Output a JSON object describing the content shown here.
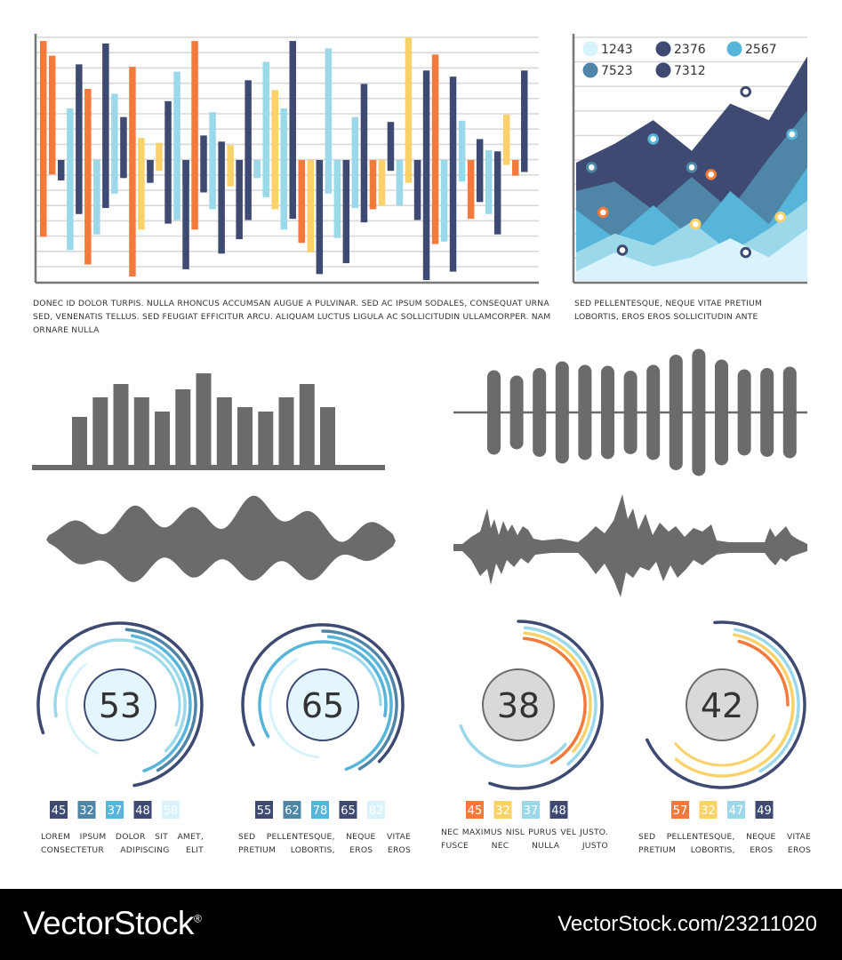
{
  "colors": {
    "navy": "#3f4a73",
    "orange": "#f47a3c",
    "lightblue": "#9bd8ea",
    "yellow": "#fbd26a",
    "blue": "#56b5d8",
    "midblue": "#4f86a8",
    "paleblue": "#d8f3fb",
    "grey": "#6b6b6b",
    "lightgrey": "#d9d9d9"
  },
  "captions": {
    "bars_main": "DONEC ID DOLOR TURPIS. NULLA RHONCUS ACCUMSAN AUGUE A PULVINAR. SED AC IPSUM SODALES, CONSEQUAT URNA SED, VENENATIS TELLUS. SED FEUGIAT EFFICITUR ARCU. ALIQUAM LUCTUS LIGULA AC SOLLICITUDIN ULLAMCORPER. NAM ORNARE NULLA",
    "area_main": "SED PELLENTESQUE, NEQUE VITAE PRETIUM LOBORTIS, EROS EROS SOLLICITUDIN ANTE",
    "gauge1": "LOREM IPSUM DOLOR SIT AMET, CONSECTETUR ADIPISCING ELIT",
    "gauge2": "SED PELLENTESQUE, NEQUE VITAE PRETIUM LOBORTIS, EROS EROS",
    "gauge3": "NEC MAXIMUS NISL PURUS VEL JUSTO. FUSCE NEC NULLA JUSTO",
    "gauge4": "SED PELLENTESQUE, NEQUE VITAE PRETIUM LOBORTIS, EROS EROS"
  },
  "footer": {
    "brand": "VectorStock",
    "registered": "®",
    "url": "VectorStock.com/23211020"
  },
  "chart_data": [
    {
      "id": "diverging-bars",
      "type": "bar",
      "title": "",
      "ylim": [
        -100,
        100
      ],
      "grid": true,
      "legend": "none",
      "series": [
        {
          "color": "orange",
          "values": [
            97,
            -64
          ]
        },
        {
          "color": "orange",
          "values": [
            85,
            -12
          ]
        },
        {
          "color": "navy",
          "values": [
            0,
            -17
          ]
        },
        {
          "color": "lightblue",
          "values": [
            42,
            -75
          ]
        },
        {
          "color": "navy",
          "values": [
            78,
            -45
          ]
        },
        {
          "color": "orange",
          "values": [
            58,
            -87
          ]
        },
        {
          "color": "lightblue",
          "values": [
            -10,
            -62
          ]
        },
        {
          "color": "navy",
          "values": [
            95,
            -40
          ]
        },
        {
          "color": "lightblue",
          "values": [
            54,
            -28
          ]
        },
        {
          "color": "navy",
          "values": [
            35,
            -15
          ]
        },
        {
          "color": "orange",
          "values": [
            76,
            -97
          ]
        },
        {
          "color": "yellow",
          "values": [
            18,
            -58
          ]
        },
        {
          "color": "navy",
          "values": [
            -8,
            -19
          ]
        },
        {
          "color": "yellow",
          "values": [
            14,
            -9
          ]
        },
        {
          "color": "navy",
          "values": [
            48,
            -53
          ]
        },
        {
          "color": "lightblue",
          "values": [
            72,
            -50
          ]
        },
        {
          "color": "navy",
          "values": [
            -20,
            -91
          ]
        },
        {
          "color": "orange",
          "values": [
            97,
            -58
          ]
        },
        {
          "color": "navy",
          "values": [
            20,
            -27
          ]
        },
        {
          "color": "lightblue",
          "values": [
            39,
            -41
          ]
        },
        {
          "color": "navy",
          "values": [
            15,
            -78
          ]
        },
        {
          "color": "yellow",
          "values": [
            12,
            -22
          ]
        },
        {
          "color": "navy",
          "values": [
            -12,
            -66
          ]
        },
        {
          "color": "navy",
          "values": [
            65,
            -50
          ]
        },
        {
          "color": "lightblue",
          "values": [
            -15,
            -15
          ]
        },
        {
          "color": "lightblue",
          "values": [
            80,
            -31
          ]
        },
        {
          "color": "yellow",
          "values": [
            57,
            -41
          ]
        },
        {
          "color": "lightblue",
          "values": [
            42,
            -58
          ]
        },
        {
          "color": "navy",
          "values": [
            97,
            -49
          ]
        },
        {
          "color": "orange",
          "values": [
            -5,
            -69
          ]
        },
        {
          "color": "yellow",
          "values": [
            -19,
            -77
          ]
        },
        {
          "color": "navy",
          "values": [
            -10,
            -95
          ]
        },
        {
          "color": "lightblue",
          "values": [
            91,
            -28
          ]
        },
        {
          "color": "lightblue",
          "values": [
            -8,
            -65
          ]
        },
        {
          "color": "navy",
          "values": [
            -12,
            -86
          ]
        },
        {
          "color": "lightblue",
          "values": [
            35,
            -40
          ]
        },
        {
          "color": "navy",
          "values": [
            62,
            -52
          ]
        },
        {
          "color": "orange",
          "values": [
            -5,
            -41
          ]
        },
        {
          "color": "yellow",
          "values": [
            -5,
            -38
          ]
        },
        {
          "color": "navy",
          "values": [
            31,
            -9
          ]
        },
        {
          "color": "lightblue",
          "values": [
            -5,
            -38
          ]
        },
        {
          "color": "yellow",
          "values": [
            100,
            -19
          ]
        },
        {
          "color": "navy",
          "values": [
            -50,
            -14
          ]
        },
        {
          "color": "navy",
          "values": [
            73,
            -100
          ]
        },
        {
          "color": "orange",
          "values": [
            86,
            -70
          ]
        },
        {
          "color": "lightblue",
          "values": [
            -5,
            -68
          ]
        },
        {
          "color": "navy",
          "values": [
            68,
            -93
          ]
        },
        {
          "color": "lightblue",
          "values": [
            32,
            -18
          ]
        },
        {
          "color": "orange",
          "values": [
            -5,
            -49
          ]
        },
        {
          "color": "navy",
          "values": [
            17,
            -35
          ]
        },
        {
          "color": "lightblue",
          "values": [
            8,
            -45
          ]
        },
        {
          "color": "navy",
          "values": [
            7,
            -62
          ]
        },
        {
          "color": "yellow",
          "values": [
            37,
            -4
          ]
        },
        {
          "color": "orange",
          "values": [
            -5,
            -13
          ]
        },
        {
          "color": "navy",
          "values": [
            73,
            -10
          ]
        }
      ]
    },
    {
      "id": "stacked-area",
      "type": "area",
      "title": "",
      "legend": "top-left",
      "legend_entries": [
        {
          "label": "1243",
          "color": "paleblue"
        },
        {
          "label": "2376",
          "color": "navy"
        },
        {
          "label": "2567",
          "color": "blue"
        },
        {
          "label": "7523",
          "color": "midblue"
        },
        {
          "label": "7312",
          "color": "navy"
        }
      ],
      "x": [
        0,
        1,
        2,
        3,
        4,
        5,
        6
      ],
      "series": [
        {
          "color": "navy",
          "values": [
            50,
            58,
            68,
            55,
            75,
            68,
            95
          ]
        },
        {
          "color": "midblue",
          "values": [
            38,
            42,
            30,
            44,
            30,
            52,
            72
          ]
        },
        {
          "color": "blue",
          "values": [
            30,
            18,
            32,
            18,
            38,
            24,
            48
          ]
        },
        {
          "color": "lightblue",
          "values": [
            12,
            20,
            15,
            25,
            12,
            22,
            34
          ]
        },
        {
          "color": "paleblue",
          "values": [
            4,
            12,
            6,
            10,
            18,
            10,
            22
          ]
        }
      ],
      "markers": [
        {
          "color": "midblue",
          "x": 0.4,
          "y": 48
        },
        {
          "color": "blue",
          "x": 2.0,
          "y": 60
        },
        {
          "color": "midblue",
          "x": 3.0,
          "y": 48
        },
        {
          "color": "orange",
          "x": 3.5,
          "y": 45
        },
        {
          "color": "navy",
          "x": 4.4,
          "y": 80
        },
        {
          "color": "blue",
          "x": 5.6,
          "y": 62
        },
        {
          "color": "orange",
          "x": 0.7,
          "y": 29
        },
        {
          "color": "yellow",
          "x": 3.1,
          "y": 24
        },
        {
          "color": "yellow",
          "x": 5.3,
          "y": 27
        },
        {
          "color": "navy",
          "x": 1.2,
          "y": 13
        },
        {
          "color": "navy",
          "x": 4.4,
          "y": 12
        }
      ]
    },
    {
      "id": "grey-bars",
      "type": "bar",
      "values": [
        55,
        77,
        92,
        77,
        61,
        86,
        104,
        77,
        66,
        61,
        77,
        92,
        66
      ]
    },
    {
      "id": "grey-centered-bars",
      "type": "bar",
      "values": [
        95,
        83,
        100,
        115,
        107,
        105,
        94,
        107,
        130,
        143,
        119,
        97,
        100,
        103
      ]
    },
    {
      "id": "gauges",
      "type": "pie",
      "items": [
        {
          "value": "53",
          "badges": [
            {
              "label": "45",
              "color": "navy"
            },
            {
              "label": "32",
              "color": "midblue"
            },
            {
              "label": "37",
              "color": "blue"
            },
            {
              "label": "48",
              "color": "navy"
            },
            {
              "label": "58",
              "color": "paleblue"
            }
          ]
        },
        {
          "value": "65",
          "badges": [
            {
              "label": "55",
              "color": "navy"
            },
            {
              "label": "62",
              "color": "midblue"
            },
            {
              "label": "78",
              "color": "blue"
            },
            {
              "label": "65",
              "color": "navy"
            },
            {
              "label": "82",
              "color": "paleblue"
            }
          ]
        },
        {
          "value": "38",
          "badges": [
            {
              "label": "45",
              "color": "orange"
            },
            {
              "label": "32",
              "color": "yellow"
            },
            {
              "label": "37",
              "color": "lightblue"
            },
            {
              "label": "48",
              "color": "navy"
            }
          ]
        },
        {
          "value": "42",
          "badges": [
            {
              "label": "57",
              "color": "orange"
            },
            {
              "label": "32",
              "color": "yellow"
            },
            {
              "label": "47",
              "color": "lightblue"
            },
            {
              "label": "49",
              "color": "navy"
            }
          ]
        }
      ]
    }
  ]
}
